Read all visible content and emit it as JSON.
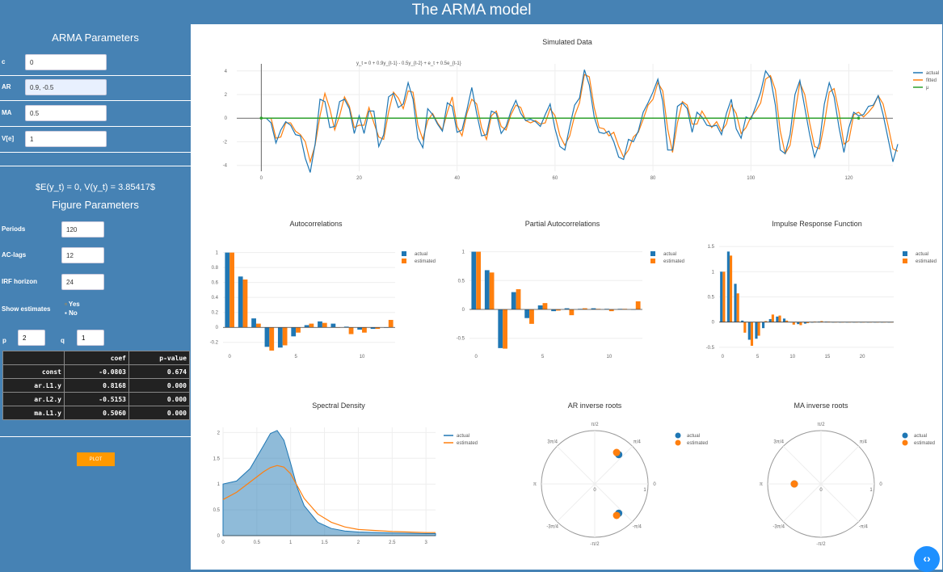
{
  "app": {
    "title": "The ARMA model"
  },
  "arma": {
    "title": "ARMA Parameters",
    "fields": [
      {
        "label": "c",
        "value": "0"
      },
      {
        "label": "AR",
        "value": "0.9, -0.5"
      },
      {
        "label": "MA",
        "value": "0.5"
      },
      {
        "label": "V[e]",
        "value": "1"
      }
    ],
    "expectation_text": "$E(y_t) = 0, V(y_t) = 3.85417$"
  },
  "figure": {
    "title": "Figure Parameters",
    "fields": [
      {
        "label": "Periods",
        "value": "120"
      },
      {
        "label": "AC-lags",
        "value": "12"
      },
      {
        "label": "IRF horizon",
        "value": "24"
      }
    ],
    "show_estimates_label": "Show estimates",
    "options": [
      "Yes",
      "No"
    ],
    "selected": "No",
    "p_label": "p",
    "p_value": "2",
    "q_label": "q",
    "q_value": "1"
  },
  "coef_table": {
    "headers": [
      "",
      "coef",
      "p-value"
    ],
    "rows": [
      [
        "const",
        "-0.0803",
        "0.674"
      ],
      [
        "ar.L1.y",
        "0.8168",
        "0.000"
      ],
      [
        "ar.L2.y",
        "-0.5153",
        "0.000"
      ],
      [
        "ma.L1.y",
        "0.5060",
        "0.000"
      ]
    ]
  },
  "plot_button": "PLOT",
  "colors": {
    "actual": "#1f77b4",
    "estimated": "#ff7f0e",
    "mean": "#2ca02c",
    "sidebar": "#4682b4",
    "button": "#ff9900"
  },
  "chart_data": [
    {
      "type": "line",
      "title": "Simulated Data",
      "annotation": "y_t = 0 + 0.9y_{t-1} - 0.5y_{t-2} + e_t + 0.5e_{t-1}",
      "x_ticks": [
        0,
        20,
        40,
        60,
        80,
        100,
        120
      ],
      "y_ticks": [
        -4,
        -2,
        0,
        2,
        4
      ],
      "xlim": [
        -5,
        129
      ],
      "ylim": [
        -4.5,
        4.6
      ],
      "legend": [
        "actual",
        "fitted",
        "μ"
      ],
      "series": [
        {
          "name": "actual",
          "values": [
            0,
            0,
            -0.4,
            -2.1,
            -1,
            -0.3,
            -0.6,
            -1.4,
            -1.5,
            -3.4,
            -4.6,
            -2.2,
            1.6,
            1.4,
            -0.8,
            -0.7,
            1.4,
            1.6,
            0.8,
            -1.3,
            0.2,
            -1.3,
            0.6,
            0.6,
            -2.4,
            -1.4,
            1.8,
            2.1,
            0.9,
            1.2,
            3,
            1.6,
            -1.7,
            -2.5,
            0.8,
            0.3,
            -0.5,
            -1.1,
            1.3,
            1,
            -1.2,
            -1,
            0.7,
            2.6,
            0.4,
            -1.5,
            -1.4,
            0.6,
            0.4,
            -1.3,
            -0.7,
            0.6,
            1.5,
            0.4,
            -0.2,
            -0.1,
            -0.3,
            -0.7,
            0.3,
            1.2,
            -0.9,
            -2.4,
            -2.7,
            -0.7,
            1.1,
            1.7,
            4.1,
            2.8,
            0.1,
            -1.2,
            -1.3,
            -1.1,
            -2,
            -3.3,
            -3.5,
            -1.8,
            -2,
            -1.1,
            0.5,
            1.3,
            2.2,
            3.3,
            1.4,
            -2.7,
            -2.7,
            1,
            1.3,
            0.8,
            -1.2,
            0.5,
            0.1,
            -0.6,
            -0.7,
            -0.6,
            -1.4,
            0.4,
            1.6,
            -0.9,
            -1.7,
            0.1,
            -0.1,
            1,
            2.2,
            4,
            3.4,
            1.1,
            -2.7,
            -3,
            -1.4,
            2,
            3.2,
            0.9,
            -1.4,
            -3.3,
            -2.1,
            1.2,
            3,
            1.8,
            -0.8,
            -2.9,
            -0.8,
            0.5,
            0.2,
            0.3,
            1,
            1.1,
            1.9,
            0.3,
            -1.7,
            -3.7,
            -2.2
          ]
        },
        {
          "name": "fitted",
          "values": [
            0,
            0,
            0,
            -1.7,
            -1.6,
            -0.4,
            -0.4,
            -1.1,
            -1.4,
            -2,
            -3.7,
            -2.3,
            0.2,
            2.1,
            0.8,
            -1,
            0.2,
            1.8,
            1,
            -0.8,
            -0.6,
            -0.6,
            0.9,
            -0.4,
            -1.6,
            -1.8,
            0.5,
            2.2,
            1.7,
            0.8,
            2.3,
            2.2,
            -0.6,
            -1.8,
            -0.2,
            0.4,
            -0.4,
            -1,
            0.5,
            1.8,
            -0.7,
            -1.5,
            0.4,
            1.6,
            1.2,
            -0.8,
            -1.8,
            0.2,
            0.6,
            -0.7,
            -1,
            0.3,
            1.1,
            0.9,
            -0.2,
            -0.4,
            -0.2,
            -0.5,
            -0.4,
            0.8,
            0.2,
            -1.5,
            -2.3,
            -1.5,
            0.2,
            1.3,
            3.7,
            3.5,
            0.9,
            -0.8,
            -0.9,
            -1.5,
            -1.2,
            -2.4,
            -3.3,
            -2.7,
            -1.6,
            -1.2,
            -0.1,
            1.1,
            1.6,
            3,
            2.3,
            -0.9,
            -2.9,
            -0.4,
            1.4,
            1.1,
            -0.5,
            -0.5,
            0.6,
            -0.1,
            -0.8,
            -0.3,
            -1.1,
            -0.5,
            1.1,
            0.4,
            -1.3,
            -0.8,
            0.1,
            0.6,
            1.3,
            3.3,
            3.6,
            2.4,
            -1.1,
            -3,
            -2.3,
            0.4,
            3,
            2,
            -0.4,
            -2.4,
            -2.6,
            -0.5,
            2.2,
            2.5,
            0.5,
            -2.2,
            -1.9,
            0.3,
            0.5,
            0.1,
            0.5,
            1,
            1.9,
            1.2,
            -0.6,
            -2.6,
            -2.8
          ]
        },
        {
          "name": "μ",
          "values": [
            0,
            0
          ]
        }
      ]
    },
    {
      "type": "bar",
      "title": "Autocorrelations",
      "categories": [
        0,
        1,
        2,
        3,
        4,
        5,
        6,
        7,
        8,
        9,
        10,
        11,
        12
      ],
      "x_ticks": [
        0,
        5,
        10
      ],
      "y_ticks": [
        -0.2,
        0,
        0.2,
        0.4,
        0.6,
        0.8,
        1
      ],
      "ylim": [
        -0.3,
        1.05
      ],
      "series": [
        {
          "name": "actual",
          "values": [
            1,
            0.68,
            0.12,
            -0.26,
            -0.27,
            -0.12,
            0.03,
            0.08,
            0.05,
            0.01,
            -0.03,
            -0.02,
            0
          ]
        },
        {
          "name": "estimated",
          "values": [
            1,
            0.64,
            0.05,
            -0.31,
            -0.24,
            -0.07,
            0.05,
            0.06,
            0,
            -0.09,
            -0.07,
            -0.02,
            0.1
          ]
        }
      ]
    },
    {
      "type": "bar",
      "title": "Partial Autocorrelations",
      "categories": [
        0,
        1,
        2,
        3,
        4,
        5,
        6,
        7,
        8,
        9,
        10,
        11,
        12
      ],
      "x_ticks": [
        0,
        5,
        10
      ],
      "y_ticks": [
        -0.5,
        0,
        0.5,
        1
      ],
      "ylim": [
        -0.7,
        1.05
      ],
      "series": [
        {
          "name": "actual",
          "values": [
            1,
            0.68,
            -0.67,
            0.3,
            -0.15,
            0.07,
            -0.03,
            0.02,
            0.01,
            0.02,
            0.01,
            0.01,
            0
          ]
        },
        {
          "name": "estimated",
          "values": [
            1,
            0.64,
            -0.68,
            0.35,
            -0.25,
            0.11,
            -0.02,
            -0.1,
            0.02,
            0.01,
            -0.03,
            0.01,
            0.14
          ]
        }
      ]
    },
    {
      "type": "bar",
      "title": "Impulse Response Function",
      "categories": [
        0,
        1,
        2,
        3,
        4,
        5,
        6,
        7,
        8,
        9,
        10,
        11,
        12,
        13,
        14,
        15,
        16,
        17,
        18,
        19,
        20,
        21,
        22,
        23,
        24
      ],
      "x_ticks": [
        0,
        5,
        10,
        15,
        20
      ],
      "y_ticks": [
        -0.5,
        0,
        0.5,
        1,
        1.5
      ],
      "ylim": [
        -0.55,
        1.55
      ],
      "series": [
        {
          "name": "actual",
          "values": [
            1,
            1.4,
            0.76,
            0.03,
            -0.35,
            -0.33,
            -0.12,
            0.06,
            0.11,
            0.07,
            0,
            -0.04,
            -0.03,
            -0.01,
            0.01,
            0.01,
            0,
            0,
            0,
            0,
            0,
            0,
            0,
            0,
            0
          ]
        },
        {
          "name": "estimated",
          "values": [
            1,
            1.32,
            0.57,
            -0.21,
            -0.47,
            -0.27,
            0.02,
            0.15,
            0.13,
            0.03,
            -0.05,
            -0.06,
            -0.02,
            0.01,
            0.02,
            0.01,
            0,
            0,
            0,
            0,
            0,
            0,
            0,
            0,
            0
          ]
        }
      ]
    },
    {
      "type": "area",
      "title": "Spectral Density",
      "x_ticks": [
        0,
        0.5,
        1,
        1.5,
        2,
        2.5,
        3
      ],
      "y_ticks": [
        0,
        0.5,
        1,
        1.5,
        2
      ],
      "xlim": [
        0,
        3.1416
      ],
      "ylim": [
        0,
        2.1
      ],
      "x": [
        0,
        0.2,
        0.4,
        0.6,
        0.7,
        0.8,
        0.9,
        1,
        1.1,
        1.2,
        1.4,
        1.6,
        1.8,
        2,
        2.5,
        3,
        3.1416
      ],
      "series": [
        {
          "name": "actual",
          "values": [
            1,
            1.06,
            1.3,
            1.75,
            1.98,
            2.04,
            1.85,
            1.4,
            0.92,
            0.58,
            0.26,
            0.14,
            0.09,
            0.07,
            0.05,
            0.04,
            0.04
          ]
        },
        {
          "name": "estimated",
          "values": [
            0.7,
            0.84,
            1.04,
            1.24,
            1.32,
            1.36,
            1.33,
            1.2,
            0.96,
            0.72,
            0.42,
            0.26,
            0.17,
            0.12,
            0.08,
            0.06,
            0.06
          ]
        }
      ]
    },
    {
      "type": "scatter",
      "title": "AR inverse roots",
      "axis_labels": [
        "π",
        "3π/4",
        "π/2",
        "π/4",
        "0",
        "-π/4",
        "-π/2",
        "-3π/4"
      ],
      "radial_ticks": [
        "0",
        "1"
      ],
      "series": [
        {
          "name": "actual",
          "points": [
            [
              0.45,
              0.55
            ],
            [
              0.45,
              -0.55
            ]
          ]
        },
        {
          "name": "estimated",
          "points": [
            [
              0.41,
              0.59
            ],
            [
              0.41,
              -0.59
            ]
          ]
        }
      ]
    },
    {
      "type": "scatter",
      "title": "MA inverse roots",
      "axis_labels": [
        "π",
        "3π/4",
        "π/2",
        "π/4",
        "0",
        "-π/4",
        "-π/2",
        "-3π/4"
      ],
      "radial_ticks": [
        "0",
        "1"
      ],
      "series": [
        {
          "name": "actual",
          "points": [
            [
              -0.5,
              0
            ]
          ]
        },
        {
          "name": "estimated",
          "points": [
            [
              -0.5,
              0
            ]
          ]
        }
      ]
    }
  ]
}
